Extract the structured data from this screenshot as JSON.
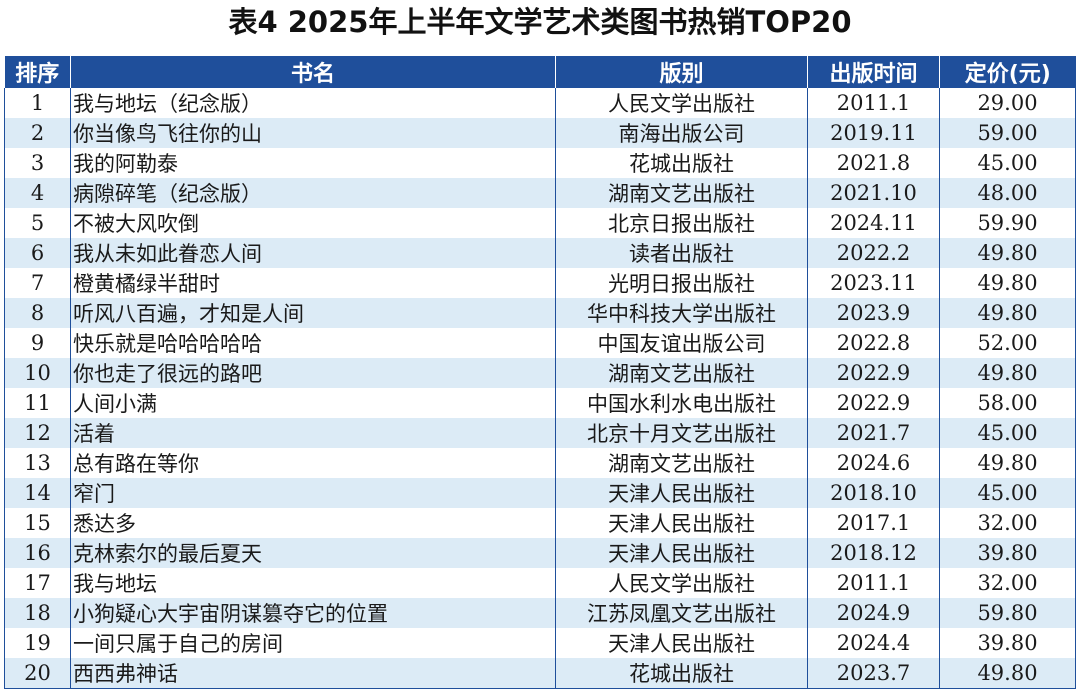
{
  "title": "表4 2025年上半年文学艺术类图书热销TOP20",
  "columns": [
    "排序",
    "书名",
    "版别",
    "出版时间",
    "定价(元)"
  ],
  "rows": [
    {
      "rank": "1",
      "title": "我与地坛（纪念版）",
      "publisher": "人民文学出版社",
      "date": "2011.1",
      "price": "29.00"
    },
    {
      "rank": "2",
      "title": "你当像鸟飞往你的山",
      "publisher": "南海出版公司",
      "date": "2019.11",
      "price": "59.00"
    },
    {
      "rank": "3",
      "title": "我的阿勒泰",
      "publisher": "花城出版社",
      "date": "2021.8",
      "price": "45.00"
    },
    {
      "rank": "4",
      "title": "病隙碎笔（纪念版）",
      "publisher": "湖南文艺出版社",
      "date": "2021.10",
      "price": "48.00"
    },
    {
      "rank": "5",
      "title": "不被大风吹倒",
      "publisher": "北京日报出版社",
      "date": "2024.11",
      "price": "59.90"
    },
    {
      "rank": "6",
      "title": "我从未如此眷恋人间",
      "publisher": "读者出版社",
      "date": "2022.2",
      "price": "49.80"
    },
    {
      "rank": "7",
      "title": "橙黄橘绿半甜时",
      "publisher": "光明日报出版社",
      "date": "2023.11",
      "price": "49.80"
    },
    {
      "rank": "8",
      "title": "听风八百遍，才知是人间",
      "publisher": "华中科技大学出版社",
      "date": "2023.9",
      "price": "49.80"
    },
    {
      "rank": "9",
      "title": "快乐就是哈哈哈哈哈",
      "publisher": "中国友谊出版公司",
      "date": "2022.8",
      "price": "52.00"
    },
    {
      "rank": "10",
      "title": "你也走了很远的路吧",
      "publisher": "湖南文艺出版社",
      "date": "2022.9",
      "price": "49.80"
    },
    {
      "rank": "11",
      "title": "人间小满",
      "publisher": "中国水利水电出版社",
      "date": "2022.9",
      "price": "58.00"
    },
    {
      "rank": "12",
      "title": "活着",
      "publisher": "北京十月文艺出版社",
      "date": "2021.7",
      "price": "45.00"
    },
    {
      "rank": "13",
      "title": "总有路在等你",
      "publisher": "湖南文艺出版社",
      "date": "2024.6",
      "price": "49.80"
    },
    {
      "rank": "14",
      "title": "窄门",
      "publisher": "天津人民出版社",
      "date": "2018.10",
      "price": "45.00"
    },
    {
      "rank": "15",
      "title": "悉达多",
      "publisher": "天津人民出版社",
      "date": "2017.1",
      "price": "32.00"
    },
    {
      "rank": "16",
      "title": "克林索尔的最后夏天",
      "publisher": "天津人民出版社",
      "date": "2018.12",
      "price": "39.80"
    },
    {
      "rank": "17",
      "title": "我与地坛",
      "publisher": "人民文学出版社",
      "date": "2011.1",
      "price": "32.00"
    },
    {
      "rank": "18",
      "title": "小狗疑心大宇宙阴谋篡夺它的位置",
      "publisher": "江苏凤凰文艺出版社",
      "date": "2024.9",
      "price": "59.80"
    },
    {
      "rank": "19",
      "title": "一间只属于自己的房间",
      "publisher": "天津人民出版社",
      "date": "2024.4",
      "price": "39.80"
    },
    {
      "rank": "20",
      "title": "西西弗神话",
      "publisher": "花城出版社",
      "date": "2023.7",
      "price": "49.80"
    }
  ]
}
